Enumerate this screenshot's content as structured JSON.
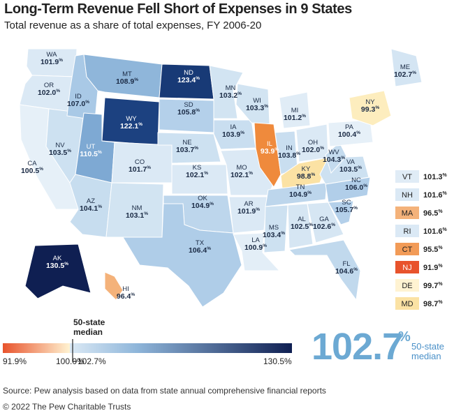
{
  "title": "Long-Term Revenue Fell Short of Expenses in 9 States",
  "subtitle": "Total revenue as a share of total expenses, FY 2006-20",
  "pct_symbol": "%",
  "states": [
    {
      "abbr": "WA",
      "value": "101.9",
      "color": "#dbe9f5"
    },
    {
      "abbr": "OR",
      "value": "102.0",
      "color": "#dbe9f5"
    },
    {
      "abbr": "CA",
      "value": "100.5",
      "color": "#e6f0f8"
    },
    {
      "abbr": "NV",
      "value": "103.5",
      "color": "#cde1f1"
    },
    {
      "abbr": "ID",
      "value": "107.0",
      "color": "#a9c9e6"
    },
    {
      "abbr": "MT",
      "value": "108.9",
      "color": "#8fb6da"
    },
    {
      "abbr": "WY",
      "value": "122.1",
      "color": "#1c4180"
    },
    {
      "abbr": "UT",
      "value": "110.5",
      "color": "#7ea9d3"
    },
    {
      "abbr": "AZ",
      "value": "104.1",
      "color": "#c7ddef"
    },
    {
      "abbr": "CO",
      "value": "101.7",
      "color": "#dbe9f5"
    },
    {
      "abbr": "NM",
      "value": "103.1",
      "color": "#d2e4f2"
    },
    {
      "abbr": "ND",
      "value": "123.4",
      "color": "#183a76"
    },
    {
      "abbr": "SD",
      "value": "105.8",
      "color": "#b4d0ea"
    },
    {
      "abbr": "NE",
      "value": "103.7",
      "color": "#cde1f1"
    },
    {
      "abbr": "KS",
      "value": "102.1",
      "color": "#dbe9f5"
    },
    {
      "abbr": "OK",
      "value": "104.9",
      "color": "#bdd6ec"
    },
    {
      "abbr": "TX",
      "value": "106.4",
      "color": "#afcde8"
    },
    {
      "abbr": "MN",
      "value": "103.2",
      "color": "#d2e4f2"
    },
    {
      "abbr": "IA",
      "value": "103.9",
      "color": "#c9def0"
    },
    {
      "abbr": "MO",
      "value": "102.1",
      "color": "#dbe9f5"
    },
    {
      "abbr": "AR",
      "value": "101.9",
      "color": "#dbe9f5"
    },
    {
      "abbr": "LA",
      "value": "100.9",
      "color": "#e3eef7"
    },
    {
      "abbr": "WI",
      "value": "103.3",
      "color": "#d2e4f2"
    },
    {
      "abbr": "IL",
      "value": "93.9",
      "color": "#ef8a3c"
    },
    {
      "abbr": "MI",
      "value": "101.2",
      "color": "#e0ecf6"
    },
    {
      "abbr": "IN",
      "value": "103.8",
      "color": "#c9def0"
    },
    {
      "abbr": "OH",
      "value": "102.0",
      "color": "#dbe9f5"
    },
    {
      "abbr": "KY",
      "value": "98.8",
      "color": "#fbe2a4"
    },
    {
      "abbr": "TN",
      "value": "104.9",
      "color": "#bdd6ec"
    },
    {
      "abbr": "MS",
      "value": "103.4",
      "color": "#cde1f1"
    },
    {
      "abbr": "AL",
      "value": "102.5",
      "color": "#d6e6f3"
    },
    {
      "abbr": "GA",
      "value": "102.6",
      "color": "#d6e6f3"
    },
    {
      "abbr": "FL",
      "value": "104.6",
      "color": "#c1d9ed"
    },
    {
      "abbr": "SC",
      "value": "105.7",
      "color": "#b4d0ea"
    },
    {
      "abbr": "NC",
      "value": "106.0",
      "color": "#b1cee9"
    },
    {
      "abbr": "VA",
      "value": "103.5",
      "color": "#cde1f1"
    },
    {
      "abbr": "WV",
      "value": "104.3",
      "color": "#c4dbee"
    },
    {
      "abbr": "PA",
      "value": "100.4",
      "color": "#e6f0f8"
    },
    {
      "abbr": "NY",
      "value": "99.3",
      "color": "#fdedbe"
    },
    {
      "abbr": "ME",
      "value": "102.7",
      "color": "#d4e5f3"
    },
    {
      "abbr": "AK",
      "value": "130.5",
      "color": "#0f1f52"
    },
    {
      "abbr": "HI",
      "value": "96.4",
      "color": "#f4b27a"
    }
  ],
  "small_states": [
    {
      "abbr": "VT",
      "value": "101.3",
      "color": "#e0ecf6"
    },
    {
      "abbr": "NH",
      "value": "101.6",
      "color": "#dbe9f5"
    },
    {
      "abbr": "MA",
      "value": "96.5",
      "color": "#f4b27a"
    },
    {
      "abbr": "RI",
      "value": "101.6",
      "color": "#dbe9f5"
    },
    {
      "abbr": "CT",
      "value": "95.5",
      "color": "#f29b57"
    },
    {
      "abbr": "NJ",
      "value": "91.9",
      "color": "#e8532c"
    },
    {
      "abbr": "DE",
      "value": "99.7",
      "color": "#fff3d2"
    },
    {
      "abbr": "MD",
      "value": "98.7",
      "color": "#fbe2a4"
    }
  ],
  "scale": {
    "min_label": "91.9%",
    "mid_label": "100.0%",
    "median_label": "102.7%",
    "max_label": "130.5%",
    "median_caption": "50-state\nmedian",
    "colors": {
      "low": "#e8532c",
      "neutral": "#fff3d2",
      "high": "#0f1f52"
    }
  },
  "median": {
    "value": "102.7",
    "pct": "%",
    "label": "50-state\nmedian"
  },
  "source": "Source: Pew analysis based on data from state annual comprehensive financial reports",
  "copyright": "© 2022 The Pew Charitable Trusts"
}
